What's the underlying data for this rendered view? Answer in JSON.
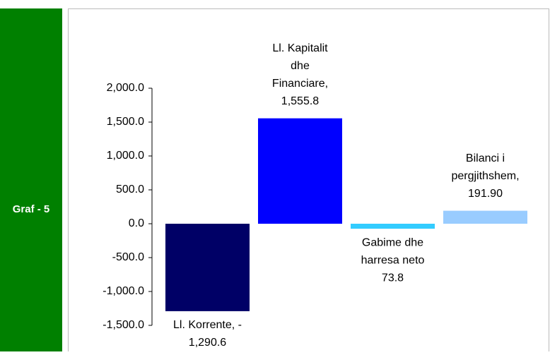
{
  "sidebar": "Graf - 5",
  "chart_data": {
    "type": "bar",
    "values": [
      -1290.6,
      1555.8,
      -73.8,
      191.9
    ],
    "value_labels": [
      [
        "Ll. Korrente, -",
        "1,290.6"
      ],
      [
        "Ll. Kapitalit",
        "dhe",
        "Financiare,",
        "1,555.8"
      ],
      [
        "Gabime dhe",
        "harresa neto",
        "73.8"
      ],
      [
        "Bilanci i",
        "pergjithshem,",
        "191.90"
      ]
    ],
    "colors": [
      "#000066",
      "#0000ff",
      "#33ccff",
      "#99ccff"
    ],
    "ylim": [
      -1500,
      2000
    ],
    "yticks": [
      {
        "value": -1500,
        "label": "-1,500.0"
      },
      {
        "value": -1000,
        "label": "-1,000.0"
      },
      {
        "value": -500,
        "label": "-500.0"
      },
      {
        "value": 0,
        "label": "0.0"
      },
      {
        "value": 500,
        "label": "500.0"
      },
      {
        "value": 1000,
        "label": "1,000.0"
      },
      {
        "value": 1500,
        "label": "1,500.0"
      },
      {
        "value": 2000,
        "label": "2,000.0"
      }
    ],
    "grid": false
  }
}
